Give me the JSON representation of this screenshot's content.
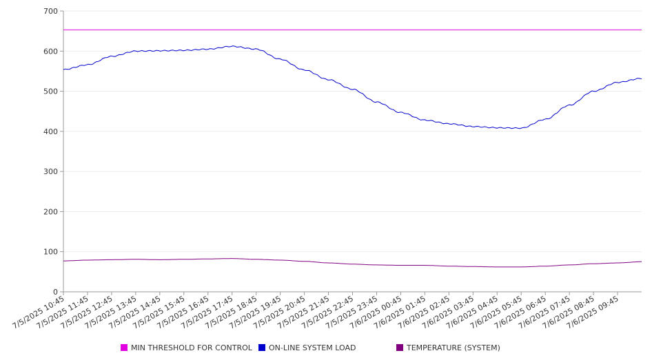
{
  "chart_data": {
    "type": "line",
    "title": "",
    "xlabel": "",
    "ylabel": "",
    "ylim": [
      0,
      700
    ],
    "y_ticks": [
      0,
      100,
      200,
      300,
      400,
      500,
      600,
      700
    ],
    "x_tick_labels": [
      "7/5/2025 10:45",
      "7/5/2025 11:45",
      "7/5/2025 12:45",
      "7/5/2025 13:45",
      "7/5/2025 14:45",
      "7/5/2025 15:45",
      "7/5/2025 16:45",
      "7/5/2025 17:45",
      "7/5/2025 18:45",
      "7/5/2025 19:45",
      "7/5/2025 20:45",
      "7/5/2025 21:45",
      "7/5/2025 22:45",
      "7/5/2025 23:45",
      "7/6/2025 00:45",
      "7/6/2025 01:45",
      "7/6/2025 02:45",
      "7/6/2025 03:45",
      "7/6/2025 04:45",
      "7/6/2025 05:45",
      "7/6/2025 06:45",
      "7/6/2025 07:45",
      "7/6/2025 08:45",
      "7/6/2025 09:45"
    ],
    "grid": true,
    "legend_position": "bottom",
    "series": [
      {
        "name": "MIN THRESHOLD FOR CONTROL",
        "color": "#e000e0",
        "values": [
          653,
          653,
          653,
          653,
          653,
          653,
          653,
          653,
          653,
          653,
          653,
          653,
          653,
          653,
          653,
          653,
          653,
          653,
          653,
          653,
          653,
          653,
          653,
          653,
          653
        ]
      },
      {
        "name": "ON-LINE SYSTEM LOAD",
        "color": "#0000cc",
        "values": [
          554,
          566,
          587,
          600,
          601,
          602,
          605,
          612,
          605,
          580,
          553,
          529,
          505,
          473,
          447,
          428,
          419,
          412,
          409,
          408,
          430,
          465,
          500,
          522,
          532
        ]
      },
      {
        "name": "TEMPERATURE (SYSTEM)",
        "color": "#800080",
        "values": [
          77,
          79,
          80,
          81,
          80,
          81,
          82,
          83,
          81,
          79,
          76,
          72,
          69,
          67,
          66,
          66,
          64,
          63,
          62,
          62,
          64,
          67,
          70,
          72,
          75
        ]
      }
    ]
  }
}
